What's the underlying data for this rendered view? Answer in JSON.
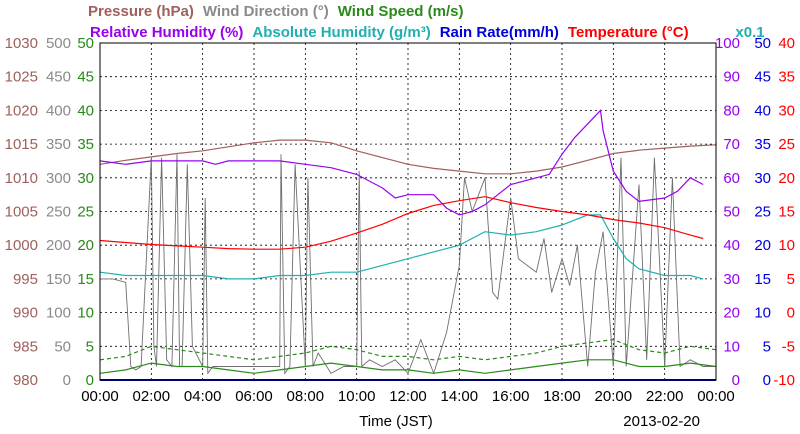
{
  "chart_data": {
    "type": "line",
    "date": "2013-02-20",
    "xlabel": "Time (JST)",
    "x_ticks": [
      "00:00",
      "02:00",
      "04:00",
      "06:00",
      "08:00",
      "10:00",
      "12:00",
      "14:00",
      "16:00",
      "18:00",
      "20:00",
      "22:00",
      "00:00"
    ],
    "titles_row1": [
      {
        "text": "Pressure (hPa)",
        "color": "#a0605c"
      },
      {
        "text": "Wind Direction (°)",
        "color": "#8a8a8a"
      },
      {
        "text": "Wind Speed (m/s)",
        "color": "#2a8a1a"
      }
    ],
    "titles_row2": [
      {
        "text": "Relative Humidity (%)",
        "color": "#9900ee"
      },
      {
        "text": "Absolute Humidity (g/m³)",
        "color": "#20b0b0"
      },
      {
        "text": "Rain Rate(mm/h)",
        "color": "#0000dd"
      },
      {
        "text": "Temperature (°C)",
        "color": "#ff0000"
      }
    ],
    "abs_humidity_multiplier": "x0.1",
    "axes": {
      "pressure": {
        "label": "Pressure (hPa)",
        "color": "#a0605c",
        "ticks": [
          "1030",
          "1025",
          "1020",
          "1015",
          "1010",
          "1005",
          "1000",
          "995",
          "990",
          "985",
          "980"
        ],
        "range": [
          980,
          1030
        ]
      },
      "wind_dir": {
        "label": "Wind Direction (°)",
        "color": "#8a8a8a",
        "ticks": [
          "500",
          "450",
          "400",
          "350",
          "300",
          "250",
          "200",
          "150",
          "100",
          "50",
          "0"
        ],
        "range": [
          0,
          500
        ]
      },
      "wind_speed": {
        "label": "Wind Speed (m/s)",
        "color": "#2a8a1a",
        "ticks": [
          "50",
          "45",
          "40",
          "35",
          "30",
          "25",
          "20",
          "15",
          "10",
          "5",
          "0"
        ],
        "range": [
          0,
          50
        ]
      },
      "humidity": {
        "label": "Relative Humidity (%)",
        "color": "#9900ee",
        "ticks": [
          "100",
          "90",
          "80",
          "70",
          "60",
          "50",
          "40",
          "30",
          "20",
          "10",
          "0"
        ],
        "range": [
          0,
          100
        ]
      },
      "rain": {
        "label": "Rain Rate(mm/h)",
        "color": "#0000dd",
        "ticks": [
          "50",
          "45",
          "40",
          "35",
          "30",
          "25",
          "20",
          "15",
          "10",
          "5",
          "0"
        ],
        "range": [
          0,
          50
        ]
      },
      "temperature": {
        "label": "Temperature (°C)",
        "color": "#ff0000",
        "ticks": [
          "40",
          "35",
          "30",
          "25",
          "20",
          "15",
          "10",
          "5",
          "0",
          "-5",
          "-10"
        ],
        "range": [
          -10,
          40
        ]
      }
    },
    "series": [
      {
        "name": "Pressure",
        "axis": "pressure",
        "color": "#a0605c",
        "x": [
          0,
          1,
          2,
          3,
          4,
          5,
          6,
          7,
          8,
          9,
          10,
          11,
          12,
          13,
          14,
          15,
          16,
          17,
          18,
          19,
          20,
          21,
          22,
          23,
          24
        ],
        "y": [
          1012,
          1012.6,
          1013.1,
          1013.6,
          1014,
          1014.6,
          1015.2,
          1015.6,
          1015.6,
          1015.2,
          1014,
          1013,
          1012,
          1011.4,
          1011,
          1010.6,
          1010.6,
          1011,
          1011.6,
          1012.6,
          1013.6,
          1014.1,
          1014.4,
          1014.7,
          1014.9
        ]
      },
      {
        "name": "Relative Humidity",
        "axis": "humidity",
        "color": "#9900ee",
        "x": [
          0,
          1,
          2,
          3,
          4,
          4.5,
          5,
          6,
          7,
          8,
          9,
          10,
          11,
          11.5,
          12,
          13,
          13.5,
          14,
          14.5,
          15,
          16,
          17,
          17.5,
          18,
          18.5,
          19,
          19.5,
          19.6,
          20,
          20.5,
          21,
          22,
          22.5,
          23,
          23.5
        ],
        "y": [
          65,
          64,
          65,
          65,
          65,
          64,
          65,
          65,
          65,
          64,
          63,
          61,
          57,
          54,
          55,
          55,
          51,
          49,
          50,
          52,
          58,
          60,
          61,
          67,
          72,
          76,
          80,
          74,
          62,
          56,
          53,
          54,
          56,
          60,
          58
        ]
      },
      {
        "name": "Absolute Humidity",
        "axis": "humidity",
        "color": "#20b0b0",
        "x": [
          0,
          1,
          2,
          3,
          4,
          5,
          6,
          7,
          8,
          9,
          10,
          11,
          12,
          13,
          14,
          15,
          16,
          17,
          18,
          19,
          19.5,
          20,
          20.5,
          21,
          22,
          23,
          23.5
        ],
        "y": [
          32,
          31,
          31,
          31,
          31,
          30,
          30,
          31,
          31,
          32,
          32,
          34,
          36,
          38,
          40,
          44,
          43,
          44,
          46,
          49,
          49,
          42,
          36,
          33,
          31,
          31,
          30
        ]
      },
      {
        "name": "Temperature",
        "axis": "temperature",
        "color": "#ff0000",
        "x": [
          0,
          1,
          2,
          3,
          4,
          5,
          6,
          7,
          8,
          9,
          10,
          11,
          12,
          13,
          14,
          15,
          16,
          17,
          18,
          19,
          20,
          21,
          22,
          23,
          23.5
        ],
        "y": [
          10.7,
          10.4,
          10.1,
          9.9,
          9.7,
          9.5,
          9.4,
          9.4,
          9.7,
          10.6,
          11.8,
          13.1,
          14.7,
          15.9,
          16.6,
          17.2,
          16.3,
          15.6,
          15,
          14.5,
          13.8,
          13.3,
          12.6,
          11.5,
          11
        ]
      },
      {
        "name": "Wind Direction",
        "axis": "wind_dir",
        "color": "#6e6e6e",
        "x": [
          0,
          0.5,
          1,
          1.2,
          1.4,
          1.6,
          2,
          2.1,
          2.2,
          2.4,
          2.6,
          2.8,
          3,
          3.1,
          3.2,
          3.4,
          3.6,
          4,
          4.1,
          4.2,
          4.4,
          5,
          6,
          7,
          7.05,
          7.2,
          7.4,
          7.6,
          8,
          8.1,
          8.3,
          8.5,
          9,
          9.5,
          10,
          10.1,
          10.2,
          10.5,
          11,
          11.5,
          12,
          12.5,
          13,
          13.5,
          14,
          14.2,
          14.5,
          15,
          15.3,
          15.5,
          16,
          16.3,
          17,
          17.3,
          17.6,
          18,
          18.3,
          18.6,
          19,
          19.3,
          19.6,
          20,
          20.3,
          20.5,
          21,
          21.3,
          21.6,
          22,
          22.3,
          22.6,
          23,
          23.5,
          24
        ],
        "y": [
          150,
          150,
          145,
          20,
          15,
          20,
          330,
          50,
          20,
          330,
          30,
          20,
          335,
          20,
          20,
          320,
          50,
          20,
          270,
          10,
          20,
          20,
          20,
          20,
          335,
          10,
          20,
          320,
          20,
          300,
          20,
          40,
          10,
          20,
          20,
          310,
          20,
          30,
          20,
          30,
          10,
          60,
          10,
          70,
          170,
          300,
          250,
          300,
          130,
          120,
          270,
          180,
          160,
          210,
          130,
          180,
          140,
          200,
          20,
          160,
          220,
          20,
          330,
          20,
          290,
          30,
          330,
          20,
          300,
          20,
          30,
          20,
          20
        ]
      },
      {
        "name": "Wind Speed",
        "axis": "wind_speed",
        "color": "#2a8a1a",
        "x": [
          0,
          1,
          2,
          3,
          4,
          5,
          6,
          7,
          8,
          9,
          10,
          11,
          12,
          13,
          14,
          15,
          16,
          17,
          18,
          19,
          20,
          21,
          22,
          23,
          24
        ],
        "y": [
          1,
          1.5,
          2.5,
          2,
          2,
          1.5,
          1,
          1.5,
          2,
          2.5,
          2,
          1.5,
          1.5,
          1,
          1.5,
          1,
          1.5,
          2,
          2.5,
          3,
          3,
          2,
          2,
          2.5,
          2
        ]
      },
      {
        "name": "Wind Gust",
        "axis": "wind_speed",
        "color": "#2a8a1a",
        "dashed": true,
        "x": [
          0,
          1,
          2,
          3,
          4,
          5,
          6,
          7,
          8,
          9,
          10,
          11,
          12,
          13,
          14,
          15,
          16,
          17,
          18,
          19,
          20,
          21,
          22,
          23,
          24
        ],
        "y": [
          3,
          3.5,
          5,
          4.5,
          4,
          3.5,
          3,
          3.5,
          4,
          5,
          4.5,
          3.5,
          3.5,
          3,
          3.5,
          3,
          3.5,
          4,
          5,
          5.5,
          6,
          4.5,
          4,
          5,
          4.5
        ]
      },
      {
        "name": "Rain Rate",
        "axis": "rain",
        "color": "#0000dd",
        "x": [
          0,
          24
        ],
        "y": [
          0,
          0
        ]
      }
    ]
  }
}
